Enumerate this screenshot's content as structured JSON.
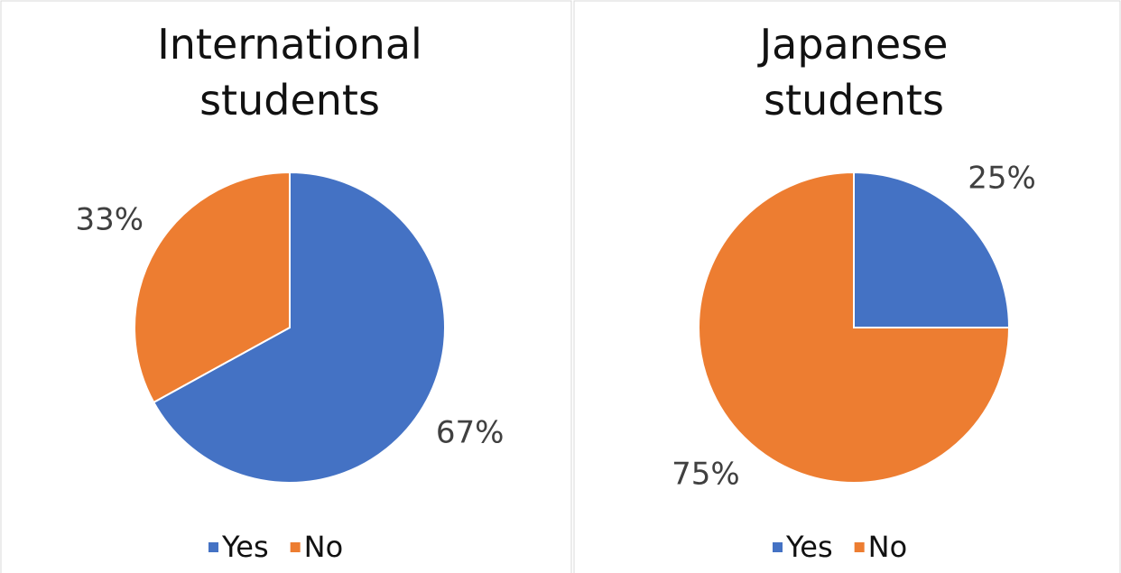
{
  "chart_data": [
    {
      "type": "pie",
      "title": "International students",
      "categories": [
        "Yes",
        "No"
      ],
      "values": [
        67,
        33
      ],
      "value_labels": [
        "67%",
        "33%"
      ],
      "colors": [
        "#4472c4",
        "#ed7d31"
      ],
      "legend": "bottom"
    },
    {
      "type": "pie",
      "title": "Japanese students",
      "categories": [
        "Yes",
        "No"
      ],
      "values": [
        25,
        75
      ],
      "value_labels": [
        "25%",
        "75%"
      ],
      "colors": [
        "#4472c4",
        "#ed7d31"
      ],
      "legend": "bottom"
    }
  ]
}
